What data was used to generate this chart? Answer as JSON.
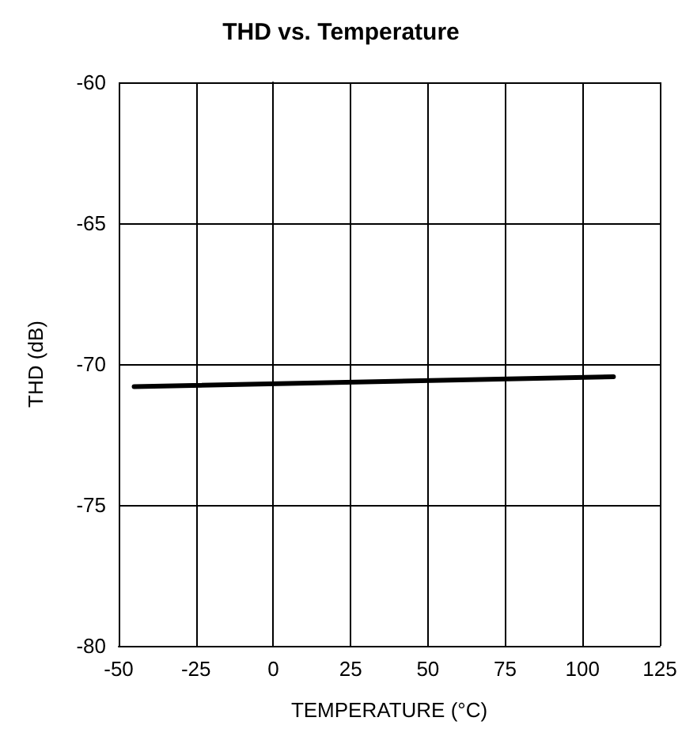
{
  "chart_data": {
    "type": "line",
    "title": "THD vs. Temperature",
    "xlabel": "TEMPERATURE (°C)",
    "ylabel": "THD (dB)",
    "x": [
      -45,
      110
    ],
    "series": [
      {
        "color": "#000000",
        "values": [
          -70.8,
          -70.45
        ]
      }
    ],
    "xlim": [
      -50,
      125
    ],
    "xticks": [
      -50,
      -25,
      0,
      25,
      50,
      75,
      100,
      125
    ],
    "ylim": [
      -80,
      -60
    ],
    "yticks": [
      -80,
      -75,
      -70,
      -65,
      -60
    ],
    "grid": true,
    "marker": "none",
    "line_style": "solid"
  }
}
